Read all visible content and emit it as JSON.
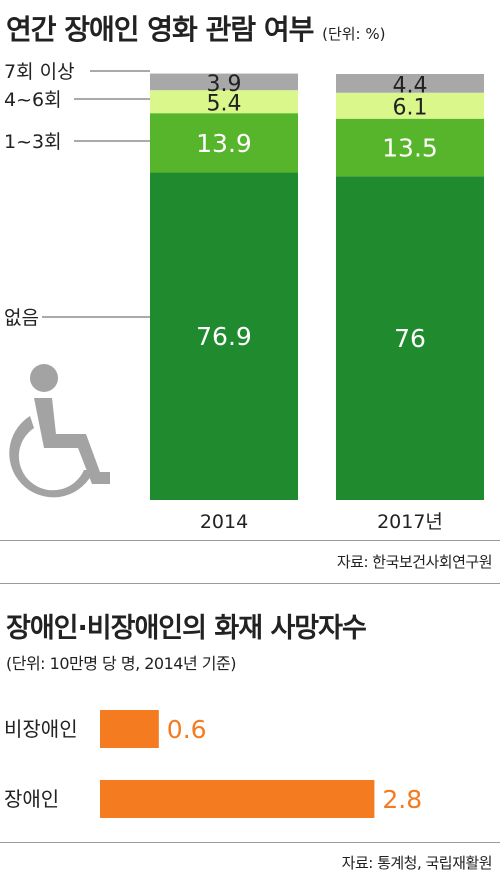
{
  "chart1": {
    "title": "연간 장애인 영화 관람 여부",
    "unit": "(단위: %)",
    "source": "자료: 한국보건사회연구원",
    "chart_data": {
      "type": "bar",
      "stacked": true,
      "categories": [
        "2014",
        "2017년"
      ],
      "series": [
        {
          "name": "없음",
          "values": [
            76.9,
            76
          ],
          "labels": [
            "76.9",
            "76"
          ],
          "color": "#1f8b2e"
        },
        {
          "name": "1~3회",
          "values": [
            13.9,
            13.5
          ],
          "labels": [
            "13.9",
            "13.5"
          ],
          "color": "#56b52a"
        },
        {
          "name": "4~6회",
          "values": [
            5.4,
            6.1
          ],
          "labels": [
            "5.4",
            "6.1"
          ],
          "color": "#d9f78a"
        },
        {
          "name": "7회 이상",
          "values": [
            3.9,
            4.4
          ],
          "labels": [
            "3.9",
            "4.4"
          ],
          "color": "#a8a8a8"
        }
      ],
      "ylim": [
        0,
        100
      ],
      "grid": false
    },
    "icon": "wheelchair-icon"
  },
  "chart2": {
    "title": "장애인·비장애인의 화재 사망자수",
    "subtitle": "(단위: 10만명 당 명, 2014년 기준)",
    "source": "자료: 통계청, 국립재활원",
    "chart_data": {
      "type": "bar",
      "orientation": "horizontal",
      "categories": [
        "비장애인",
        "장애인"
      ],
      "values": [
        0.6,
        2.8
      ],
      "labels": [
        "0.6",
        "2.8"
      ],
      "color": "#f47b20",
      "grid": false
    }
  }
}
